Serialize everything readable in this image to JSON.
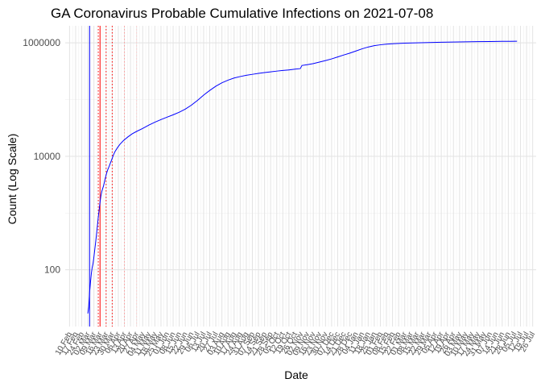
{
  "chart_data": {
    "type": "line",
    "title": "GA Coronavirus Probable Cumulative Infections on 2021-07-08",
    "xlabel": "Date",
    "ylabel": "Count (Log Scale)",
    "y_scale": "log10",
    "ylim": [
      10,
      2000000
    ],
    "xlim": [
      "2020-02-05",
      "2021-07-30"
    ],
    "grid": true,
    "legend": "none",
    "y_ticks": [
      {
        "value": 100,
        "label": "100"
      },
      {
        "value": 10000,
        "label": "10000"
      },
      {
        "value": 1000000,
        "label": "1000000"
      }
    ],
    "x_ticks": [
      {
        "date": "2020-02-10",
        "label": "10 Feb"
      },
      {
        "date": "2020-02-17",
        "label": "17 Feb"
      },
      {
        "date": "2020-02-24",
        "label": "24 Feb"
      },
      {
        "date": "2020-03-02",
        "label": "02 Mar"
      },
      {
        "date": "2020-03-09",
        "label": "09 Mar"
      },
      {
        "date": "2020-03-16",
        "label": "16 Mar"
      },
      {
        "date": "2020-03-23",
        "label": "23 Mar"
      },
      {
        "date": "2020-03-30",
        "label": "30 Mar"
      },
      {
        "date": "2020-04-06",
        "label": "06 Apr"
      },
      {
        "date": "2020-04-13",
        "label": "13 Apr"
      },
      {
        "date": "2020-04-20",
        "label": "20 Apr"
      },
      {
        "date": "2020-04-27",
        "label": "27 Apr"
      },
      {
        "date": "2020-05-04",
        "label": "04 May"
      },
      {
        "date": "2020-05-11",
        "label": "11 May"
      },
      {
        "date": "2020-05-18",
        "label": "18 May"
      },
      {
        "date": "2020-05-25",
        "label": "25 May"
      },
      {
        "date": "2020-06-01",
        "label": "01 Jun"
      },
      {
        "date": "2020-06-08",
        "label": "08 Jun"
      },
      {
        "date": "2020-06-15",
        "label": "15 Jun"
      },
      {
        "date": "2020-06-22",
        "label": "22 Jun"
      },
      {
        "date": "2020-06-29",
        "label": "29 Jun"
      },
      {
        "date": "2020-07-06",
        "label": "06 Jul"
      },
      {
        "date": "2020-07-13",
        "label": "13 Jul"
      },
      {
        "date": "2020-07-20",
        "label": "20 Jul"
      },
      {
        "date": "2020-07-27",
        "label": "27 Jul"
      },
      {
        "date": "2020-08-03",
        "label": "03 Aug"
      },
      {
        "date": "2020-08-10",
        "label": "10 Aug"
      },
      {
        "date": "2020-08-17",
        "label": "17 Aug"
      },
      {
        "date": "2020-08-24",
        "label": "24 Aug"
      },
      {
        "date": "2020-08-31",
        "label": "31 Aug"
      },
      {
        "date": "2020-09-07",
        "label": "07 Sep"
      },
      {
        "date": "2020-09-14",
        "label": "14 Sep"
      },
      {
        "date": "2020-09-21",
        "label": "21 Sep"
      },
      {
        "date": "2020-09-28",
        "label": "28 Sep"
      },
      {
        "date": "2020-10-05",
        "label": "05 Oct"
      },
      {
        "date": "2020-10-12",
        "label": "12 Oct"
      },
      {
        "date": "2020-10-19",
        "label": "19 Oct"
      },
      {
        "date": "2020-10-26",
        "label": "26 Oct"
      },
      {
        "date": "2020-11-02",
        "label": "02 Nov"
      },
      {
        "date": "2020-11-09",
        "label": "09 Nov"
      },
      {
        "date": "2020-11-16",
        "label": "16 Nov"
      },
      {
        "date": "2020-11-23",
        "label": "23 Nov"
      },
      {
        "date": "2020-11-30",
        "label": "30 Nov"
      },
      {
        "date": "2020-12-07",
        "label": "07 Dec"
      },
      {
        "date": "2020-12-14",
        "label": "14 Dec"
      },
      {
        "date": "2020-12-21",
        "label": "21 Dec"
      },
      {
        "date": "2020-12-28",
        "label": "28 Dec"
      },
      {
        "date": "2021-01-04",
        "label": "04 Jan"
      },
      {
        "date": "2021-01-11",
        "label": "11 Jan"
      },
      {
        "date": "2021-01-18",
        "label": "18 Jan"
      },
      {
        "date": "2021-01-25",
        "label": "25 Jan"
      },
      {
        "date": "2021-02-01",
        "label": "01 Feb"
      },
      {
        "date": "2021-02-08",
        "label": "08 Feb"
      },
      {
        "date": "2021-02-15",
        "label": "15 Feb"
      },
      {
        "date": "2021-02-22",
        "label": "22 Feb"
      },
      {
        "date": "2021-03-01",
        "label": "01 Mar"
      },
      {
        "date": "2021-03-08",
        "label": "08 Mar"
      },
      {
        "date": "2021-03-15",
        "label": "15 Mar"
      },
      {
        "date": "2021-03-22",
        "label": "22 Mar"
      },
      {
        "date": "2021-03-29",
        "label": "29 Mar"
      },
      {
        "date": "2021-04-05",
        "label": "05 Apr"
      },
      {
        "date": "2021-04-12",
        "label": "12 Apr"
      },
      {
        "date": "2021-04-19",
        "label": "19 Apr"
      },
      {
        "date": "2021-04-26",
        "label": "26 Apr"
      },
      {
        "date": "2021-05-03",
        "label": "03 May"
      },
      {
        "date": "2021-05-10",
        "label": "10 May"
      },
      {
        "date": "2021-05-17",
        "label": "17 May"
      },
      {
        "date": "2021-05-24",
        "label": "24 May"
      },
      {
        "date": "2021-05-31",
        "label": "31 May"
      },
      {
        "date": "2021-06-07",
        "label": "07 Jun"
      },
      {
        "date": "2021-06-14",
        "label": "14 Jun"
      },
      {
        "date": "2021-06-21",
        "label": "21 Jun"
      },
      {
        "date": "2021-06-28",
        "label": "28 Jun"
      },
      {
        "date": "2021-07-05",
        "label": "05 Jul"
      },
      {
        "date": "2021-07-12",
        "label": "12 Jul"
      },
      {
        "date": "2021-07-19",
        "label": "19 Jul"
      },
      {
        "date": "2021-07-26",
        "label": "26 Jul"
      }
    ],
    "series": [
      {
        "color": "#0000ff",
        "points": [
          [
            "2020-03-02",
            17
          ],
          [
            "2020-03-03",
            22
          ],
          [
            "2020-03-04",
            40
          ],
          [
            "2020-03-05",
            60
          ],
          [
            "2020-03-06",
            85
          ],
          [
            "2020-03-07",
            110
          ],
          [
            "2020-03-08",
            130
          ],
          [
            "2020-03-09",
            170
          ],
          [
            "2020-03-10",
            230
          ],
          [
            "2020-03-11",
            310
          ],
          [
            "2020-03-12",
            430
          ],
          [
            "2020-03-13",
            600
          ],
          [
            "2020-03-14",
            850
          ],
          [
            "2020-03-15",
            1150
          ],
          [
            "2020-03-16",
            1550
          ],
          [
            "2020-03-17",
            2000
          ],
          [
            "2020-03-18",
            2400
          ],
          [
            "2020-03-19",
            2700
          ],
          [
            "2020-03-20",
            3000
          ],
          [
            "2020-03-21",
            3500
          ],
          [
            "2020-03-22",
            4100
          ],
          [
            "2020-03-23",
            4700
          ],
          [
            "2020-03-24",
            5300
          ],
          [
            "2020-03-25",
            5900
          ],
          [
            "2020-03-26",
            6400
          ],
          [
            "2020-03-27",
            7000
          ],
          [
            "2020-03-28",
            7700
          ],
          [
            "2020-03-29",
            8400
          ],
          [
            "2020-03-30",
            9200
          ],
          [
            "2020-03-31",
            10200
          ],
          [
            "2020-04-02",
            12000
          ],
          [
            "2020-04-05",
            14200
          ],
          [
            "2020-04-08",
            16400
          ],
          [
            "2020-04-12",
            19000
          ],
          [
            "2020-04-17",
            22000
          ],
          [
            "2020-04-22",
            25000
          ],
          [
            "2020-04-27",
            27500
          ],
          [
            "2020-05-04",
            31000
          ],
          [
            "2020-05-11",
            35500
          ],
          [
            "2020-05-18",
            40000
          ],
          [
            "2020-05-25",
            44500
          ],
          [
            "2020-06-01",
            49000
          ],
          [
            "2020-06-08",
            54000
          ],
          [
            "2020-06-15",
            60000
          ],
          [
            "2020-06-22",
            68000
          ],
          [
            "2020-06-29",
            80000
          ],
          [
            "2020-07-06",
            97000
          ],
          [
            "2020-07-13",
            120000
          ],
          [
            "2020-07-20",
            145000
          ],
          [
            "2020-07-27",
            172000
          ],
          [
            "2020-08-03",
            198000
          ],
          [
            "2020-08-10",
            220000
          ],
          [
            "2020-08-17",
            240000
          ],
          [
            "2020-08-24",
            255000
          ],
          [
            "2020-08-31",
            268000
          ],
          [
            "2020-09-07",
            279000
          ],
          [
            "2020-09-14",
            290000
          ],
          [
            "2020-09-21",
            300000
          ],
          [
            "2020-09-28",
            309000
          ],
          [
            "2020-10-05",
            318000
          ],
          [
            "2020-10-12",
            326000
          ],
          [
            "2020-10-19",
            334000
          ],
          [
            "2020-10-26",
            344000
          ],
          [
            "2020-11-01",
            352000
          ],
          [
            "2020-11-03",
            400000
          ],
          [
            "2020-11-09",
            412000
          ],
          [
            "2020-11-16",
            432000
          ],
          [
            "2020-11-23",
            458000
          ],
          [
            "2020-11-30",
            488000
          ],
          [
            "2020-12-07",
            522000
          ],
          [
            "2020-12-14",
            565000
          ],
          [
            "2020-12-21",
            612000
          ],
          [
            "2020-12-28",
            660000
          ],
          [
            "2021-01-04",
            720000
          ],
          [
            "2021-01-11",
            785000
          ],
          [
            "2021-01-18",
            845000
          ],
          [
            "2021-01-25",
            892000
          ],
          [
            "2021-02-01",
            925000
          ],
          [
            "2021-02-08",
            950000
          ],
          [
            "2021-02-15",
            965000
          ],
          [
            "2021-02-22",
            978000
          ],
          [
            "2021-03-01",
            988000
          ],
          [
            "2021-03-15",
            1002000
          ],
          [
            "2021-03-29",
            1014000
          ],
          [
            "2021-04-12",
            1025000
          ],
          [
            "2021-04-26",
            1036000
          ],
          [
            "2021-05-10",
            1045000
          ],
          [
            "2021-05-24",
            1052000
          ],
          [
            "2021-06-07",
            1058000
          ],
          [
            "2021-06-21",
            1063000
          ],
          [
            "2021-07-08",
            1068000
          ]
        ]
      }
    ],
    "reference_lines": [
      {
        "date": "2020-03-04",
        "color": "#0000ff",
        "style": "solid"
      },
      {
        "date": "2020-03-14",
        "color": "#ff0000",
        "style": "dotted"
      },
      {
        "date": "2020-03-16",
        "color": "#ff0000",
        "style": "solid"
      },
      {
        "date": "2020-03-23",
        "color": "#ff0000",
        "style": "dotted"
      },
      {
        "date": "2020-03-30",
        "color": "#ff0000",
        "style": "dotted"
      },
      {
        "date": "2020-04-13",
        "color": "#ff9999",
        "style": "dotted"
      },
      {
        "date": "2020-04-27",
        "color": "#ffcccc",
        "style": "dotted"
      }
    ]
  }
}
